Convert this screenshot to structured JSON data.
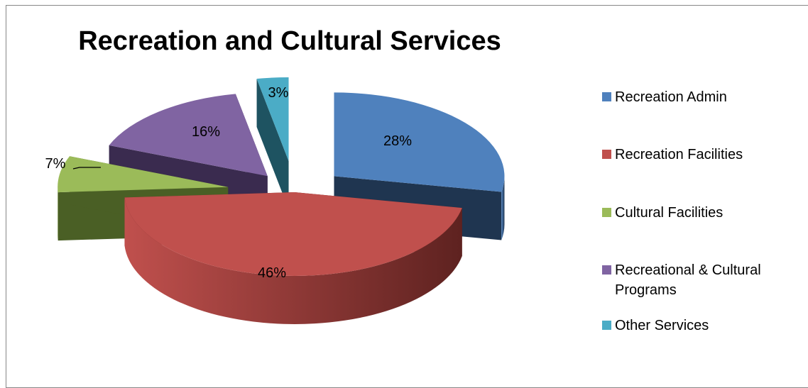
{
  "chart_data": {
    "type": "pie",
    "title": "Recreation and Cultural Services",
    "legend_position": "right",
    "slices": [
      {
        "label": "Recreation Admin",
        "value": 28,
        "data_label": "28%",
        "color": "#4F81BD",
        "side_color": "#1F3550"
      },
      {
        "label": "Recreation Facilities",
        "value": 46,
        "data_label": "46%",
        "color": "#C0504D",
        "side_color": "#5E2220"
      },
      {
        "label": "Cultural Facilities",
        "value": 7,
        "data_label": "7%",
        "color": "#9BBB59",
        "side_color": "#4A5F25"
      },
      {
        "label": "Recreational & Cultural Programs",
        "value": 16,
        "data_label": "16%",
        "color": "#8064A2",
        "side_color": "#3A2B4F"
      },
      {
        "label": "Other Services",
        "value": 3,
        "data_label": "3%",
        "color": "#4BACC6",
        "side_color": "#1E5361"
      }
    ]
  }
}
